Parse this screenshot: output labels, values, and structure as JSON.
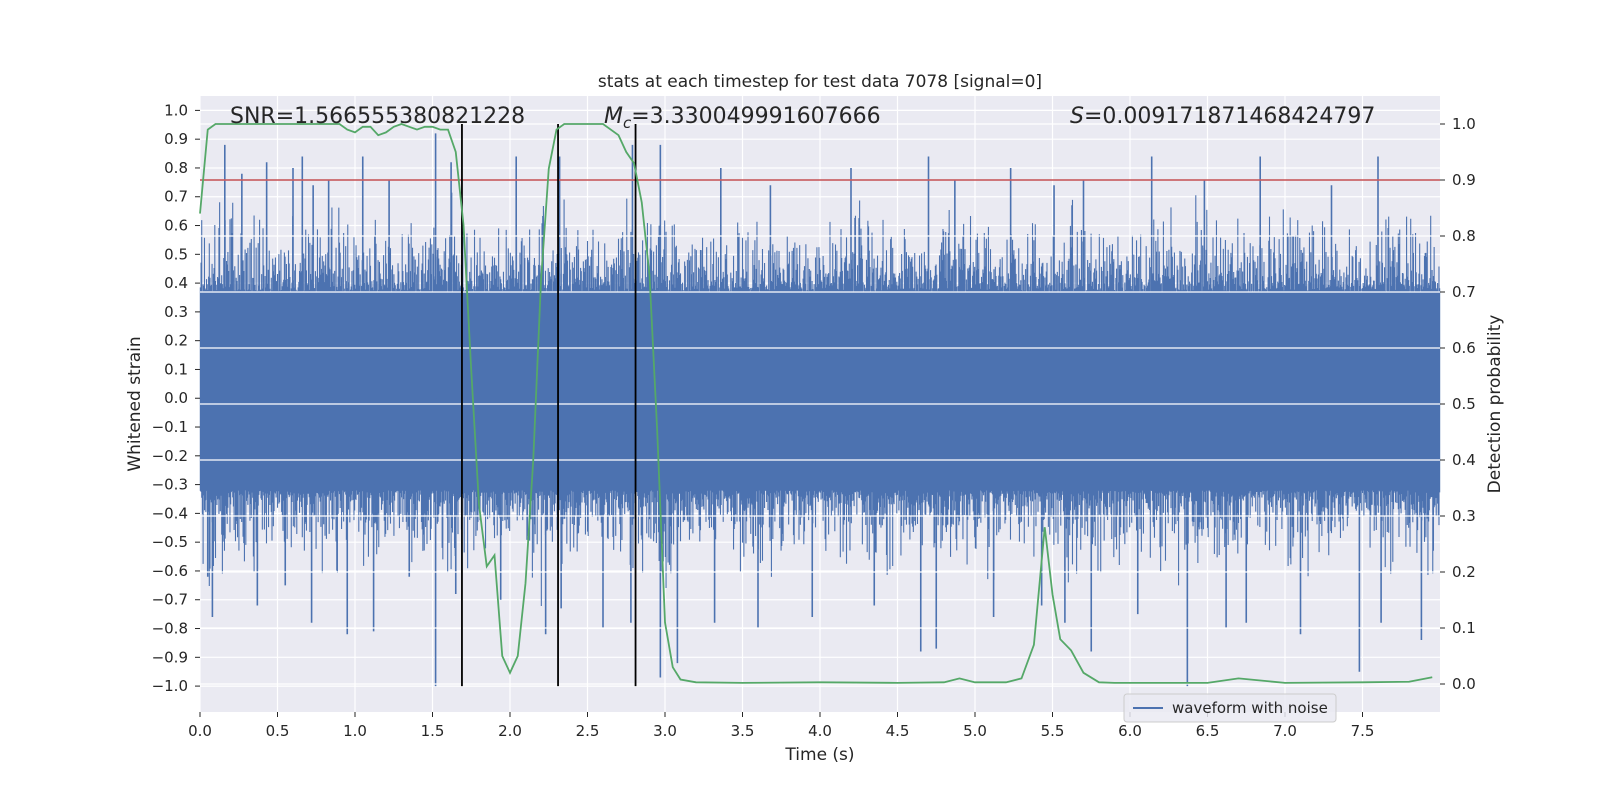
{
  "chart_data": {
    "type": "line",
    "title": "stats at each timestep for test data 7078 [signal=0]",
    "xlabel": "Time (s)",
    "ylabel": "Whitened strain",
    "y2label": "Detection probability",
    "xlim": [
      0.0,
      8.0
    ],
    "ylim": [
      -1.09,
      1.05
    ],
    "y2lim": [
      -0.05,
      1.05
    ],
    "xticks": [
      0.0,
      0.5,
      1.0,
      1.5,
      2.0,
      2.5,
      3.0,
      3.5,
      4.0,
      4.5,
      5.0,
      5.5,
      6.0,
      6.5,
      7.0,
      7.5
    ],
    "xtick_labels": [
      "0.0",
      "0.5",
      "1.0",
      "1.5",
      "2.0",
      "2.5",
      "3.0",
      "3.5",
      "4.0",
      "4.5",
      "5.0",
      "5.5",
      "6.0",
      "6.5",
      "7.0",
      "7.5"
    ],
    "yticks": [
      -1.0,
      -0.9,
      -0.8,
      -0.7,
      -0.6,
      -0.5,
      -0.4,
      -0.3,
      -0.2,
      -0.1,
      0.0,
      0.1,
      0.2,
      0.3,
      0.4,
      0.5,
      0.6,
      0.7,
      0.8,
      0.9,
      1.0
    ],
    "ytick_labels": [
      "−1.0",
      "−0.9",
      "−0.8",
      "−0.7",
      "−0.6",
      "−0.5",
      "−0.4",
      "−0.3",
      "−0.2",
      "−0.1",
      "0.0",
      "0.1",
      "0.2",
      "0.3",
      "0.4",
      "0.5",
      "0.6",
      "0.7",
      "0.8",
      "0.9",
      "1.0"
    ],
    "y2ticks": [
      0.0,
      0.1,
      0.2,
      0.3,
      0.4,
      0.5,
      0.6,
      0.7,
      0.8,
      0.9,
      1.0
    ],
    "y2tick_labels": [
      "0.0",
      "0.1",
      "0.2",
      "0.3",
      "0.4",
      "0.5",
      "0.6",
      "0.7",
      "0.8",
      "0.9",
      "1.0"
    ],
    "annotations": {
      "snr": "SNR=1.566555380821228",
      "mc_symbol": "M",
      "mc_sub": "c",
      "mc_value": "=3.330049991607666",
      "s_symbol": "S",
      "s_value": "=0.009171871468424797"
    },
    "threshold": {
      "y2": 0.9,
      "color": "#c44e52"
    },
    "vlines": [
      1.69,
      2.31,
      2.81
    ],
    "legend": {
      "label": "waveform with noise",
      "position": "bottom-right"
    },
    "waveform": {
      "name": "waveform with noise",
      "color": "#4c72b0",
      "core_band": [
        -0.3,
        0.35
      ],
      "spikes": [
        {
          "x": 0.16,
          "y": 0.88
        },
        {
          "x": 0.27,
          "y": 0.78
        },
        {
          "x": 0.43,
          "y": 0.82
        },
        {
          "x": 0.6,
          "y": 0.8
        },
        {
          "x": 0.66,
          "y": 0.84
        },
        {
          "x": 0.73,
          "y": 0.74
        },
        {
          "x": 0.83,
          "y": 0.76
        },
        {
          "x": 1.05,
          "y": 0.84
        },
        {
          "x": 1.22,
          "y": 0.76
        },
        {
          "x": 1.52,
          "y": 0.92
        },
        {
          "x": 1.62,
          "y": 0.82
        },
        {
          "x": 2.04,
          "y": 0.84
        },
        {
          "x": 2.32,
          "y": 0.84
        },
        {
          "x": 2.79,
          "y": 0.88
        },
        {
          "x": 2.97,
          "y": 0.88
        },
        {
          "x": 3.36,
          "y": 0.8
        },
        {
          "x": 3.68,
          "y": 0.74
        },
        {
          "x": 4.2,
          "y": 0.8
        },
        {
          "x": 4.7,
          "y": 0.84
        },
        {
          "x": 4.87,
          "y": 0.76
        },
        {
          "x": 5.23,
          "y": 0.8
        },
        {
          "x": 5.51,
          "y": 0.74
        },
        {
          "x": 5.7,
          "y": 0.76
        },
        {
          "x": 6.14,
          "y": 0.84
        },
        {
          "x": 6.48,
          "y": 0.76
        },
        {
          "x": 6.84,
          "y": 0.84
        },
        {
          "x": 7.3,
          "y": 0.74
        },
        {
          "x": 7.6,
          "y": 0.84
        },
        {
          "x": 0.05,
          "y": -0.62
        },
        {
          "x": 0.08,
          "y": -0.76
        },
        {
          "x": 0.37,
          "y": -0.72
        },
        {
          "x": 0.55,
          "y": -0.65
        },
        {
          "x": 0.72,
          "y": -0.78
        },
        {
          "x": 0.95,
          "y": -0.82
        },
        {
          "x": 1.12,
          "y": -0.81
        },
        {
          "x": 1.35,
          "y": -0.62
        },
        {
          "x": 1.52,
          "y": -1.0
        },
        {
          "x": 1.65,
          "y": -0.68
        },
        {
          "x": 1.94,
          "y": -0.7
        },
        {
          "x": 2.23,
          "y": -0.82
        },
        {
          "x": 2.33,
          "y": -0.73
        },
        {
          "x": 2.6,
          "y": -0.8
        },
        {
          "x": 2.78,
          "y": -0.78
        },
        {
          "x": 2.97,
          "y": -0.97
        },
        {
          "x": 3.08,
          "y": -0.92
        },
        {
          "x": 3.32,
          "y": -0.78
        },
        {
          "x": 3.6,
          "y": -0.8
        },
        {
          "x": 3.95,
          "y": -0.76
        },
        {
          "x": 4.35,
          "y": -0.72
        },
        {
          "x": 4.65,
          "y": -0.88
        },
        {
          "x": 4.75,
          "y": -0.87
        },
        {
          "x": 5.12,
          "y": -0.76
        },
        {
          "x": 5.43,
          "y": -0.72
        },
        {
          "x": 5.58,
          "y": -0.78
        },
        {
          "x": 5.75,
          "y": -0.88
        },
        {
          "x": 6.05,
          "y": -0.75
        },
        {
          "x": 6.37,
          "y": -1.0
        },
        {
          "x": 6.62,
          "y": -0.8
        },
        {
          "x": 6.75,
          "y": -0.78
        },
        {
          "x": 7.1,
          "y": -0.82
        },
        {
          "x": 7.48,
          "y": -0.95
        },
        {
          "x": 7.62,
          "y": -0.78
        },
        {
          "x": 7.88,
          "y": -0.84
        }
      ]
    },
    "probability": {
      "name": "detection probability",
      "color": "#55a868",
      "x": [
        0.0,
        0.05,
        0.1,
        0.2,
        0.5,
        0.8,
        0.9,
        0.95,
        1.0,
        1.05,
        1.1,
        1.15,
        1.2,
        1.25,
        1.3,
        1.35,
        1.4,
        1.45,
        1.5,
        1.55,
        1.6,
        1.65,
        1.7,
        1.75,
        1.8,
        1.85,
        1.9,
        1.95,
        2.0,
        2.05,
        2.1,
        2.15,
        2.2,
        2.25,
        2.3,
        2.35,
        2.4,
        2.45,
        2.5,
        2.6,
        2.7,
        2.75,
        2.8,
        2.85,
        2.9,
        2.95,
        3.0,
        3.05,
        3.1,
        3.2,
        3.5,
        4.0,
        4.5,
        4.8,
        4.9,
        5.0,
        5.2,
        5.3,
        5.38,
        5.45,
        5.5,
        5.55,
        5.62,
        5.7,
        5.8,
        5.9,
        6.5,
        6.7,
        7.0,
        7.5,
        7.8,
        7.95
      ],
      "y": [
        0.84,
        0.99,
        1.0,
        1.0,
        1.0,
        1.0,
        1.0,
        0.99,
        0.985,
        0.995,
        0.995,
        0.98,
        0.985,
        0.995,
        1.0,
        0.995,
        0.99,
        0.995,
        0.995,
        0.99,
        0.99,
        0.95,
        0.82,
        0.56,
        0.32,
        0.21,
        0.23,
        0.05,
        0.02,
        0.05,
        0.18,
        0.4,
        0.72,
        0.92,
        0.99,
        1.0,
        1.0,
        1.0,
        1.0,
        1.0,
        0.98,
        0.95,
        0.93,
        0.86,
        0.73,
        0.45,
        0.11,
        0.03,
        0.008,
        0.003,
        0.002,
        0.003,
        0.002,
        0.003,
        0.01,
        0.003,
        0.003,
        0.01,
        0.07,
        0.28,
        0.16,
        0.08,
        0.06,
        0.02,
        0.003,
        0.002,
        0.002,
        0.01,
        0.002,
        0.003,
        0.004,
        0.012
      ]
    }
  }
}
